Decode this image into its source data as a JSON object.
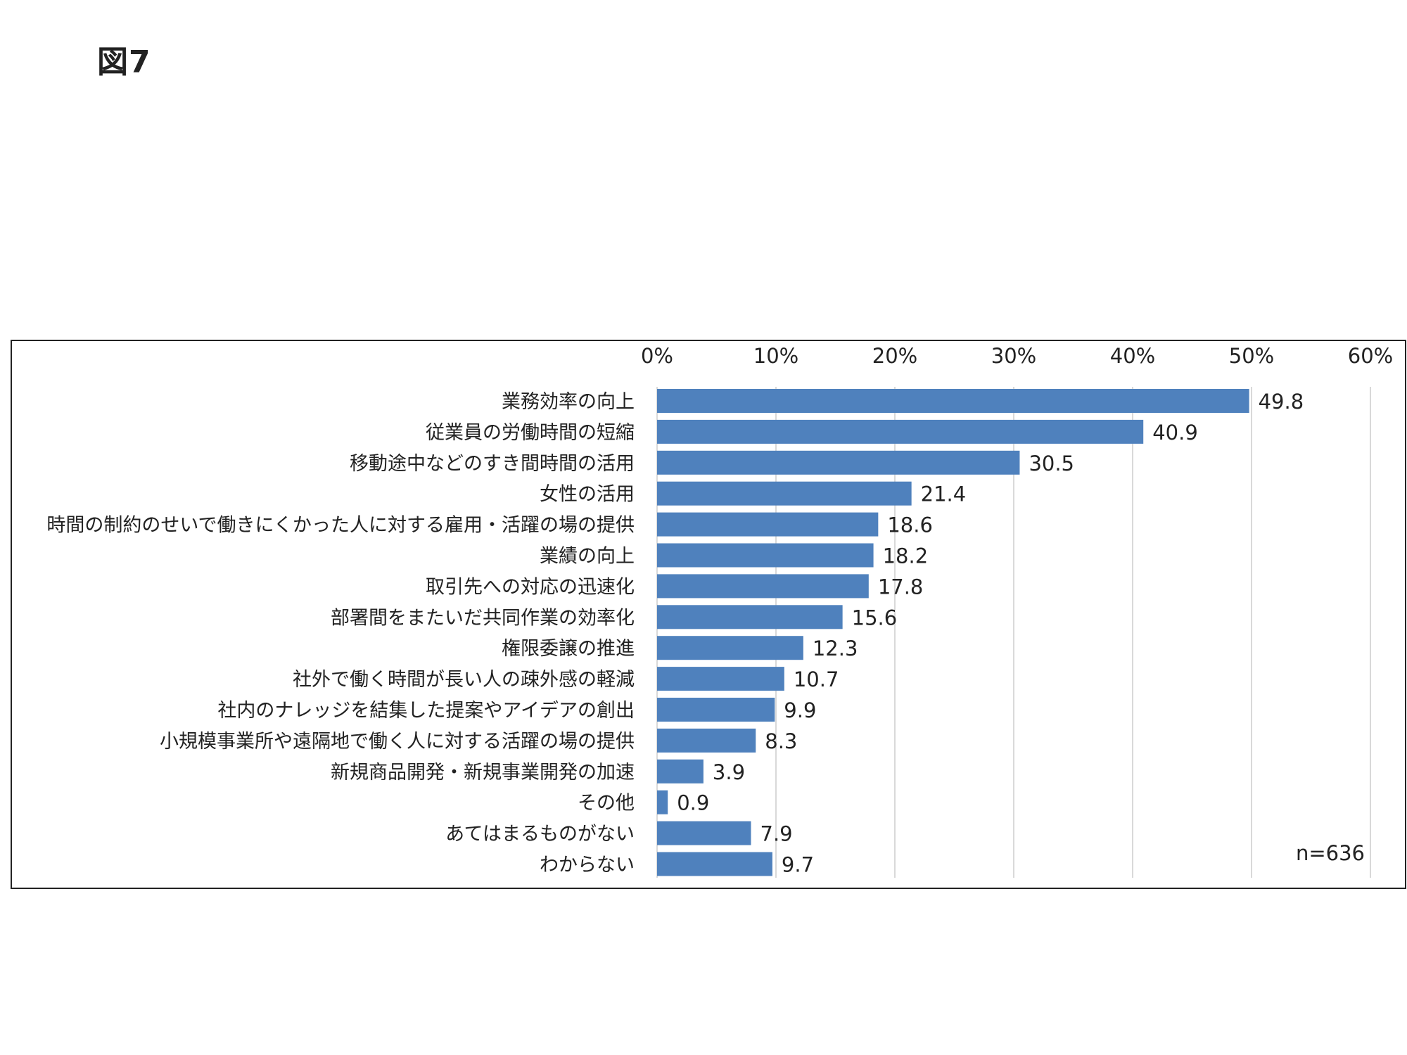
{
  "page_title": "図7",
  "note": "n=636",
  "chart_data": {
    "type": "bar",
    "orientation": "horizontal",
    "categories": [
      "業務効率の向上",
      "従業員の労働時間の短縮",
      "移動途中などのすき間時間の活用",
      "女性の活用",
      "時間の制約のせいで働きにくかった人に対する雇用・活躍の場の提供",
      "業績の向上",
      "取引先への対応の迅速化",
      "部署間をまたいだ共同作業の効率化",
      "権限委譲の推進",
      "社外で働く時間が長い人の疎外感の軽減",
      "社内のナレッジを結集した提案やアイデアの創出",
      "小規模事業所や遠隔地で働く人に対する活躍の場の提供",
      "新規商品開発・新規事業開発の加速",
      "その他",
      "あてはまるものがない",
      "わからない"
    ],
    "values": [
      49.8,
      40.9,
      30.5,
      21.4,
      18.6,
      18.2,
      17.8,
      15.6,
      12.3,
      10.7,
      9.9,
      8.3,
      3.9,
      0.9,
      7.9,
      9.7
    ],
    "value_labels": [
      "49.8",
      "40.9",
      "30.5",
      "21.4",
      "18.6",
      "18.2",
      "17.8",
      "15.6",
      "12.3",
      "10.7",
      "9.9",
      "8.3",
      "3.9",
      "0.9",
      "7.9",
      "9.7"
    ],
    "xlim": [
      0,
      60
    ],
    "x_ticks": [
      "0%",
      "10%",
      "20%",
      "30%",
      "40%",
      "50%",
      "60%"
    ],
    "x_axis_position": "top",
    "grid": true,
    "bar_color": "#4f81bd",
    "grid_color": "#d9d9d9"
  }
}
